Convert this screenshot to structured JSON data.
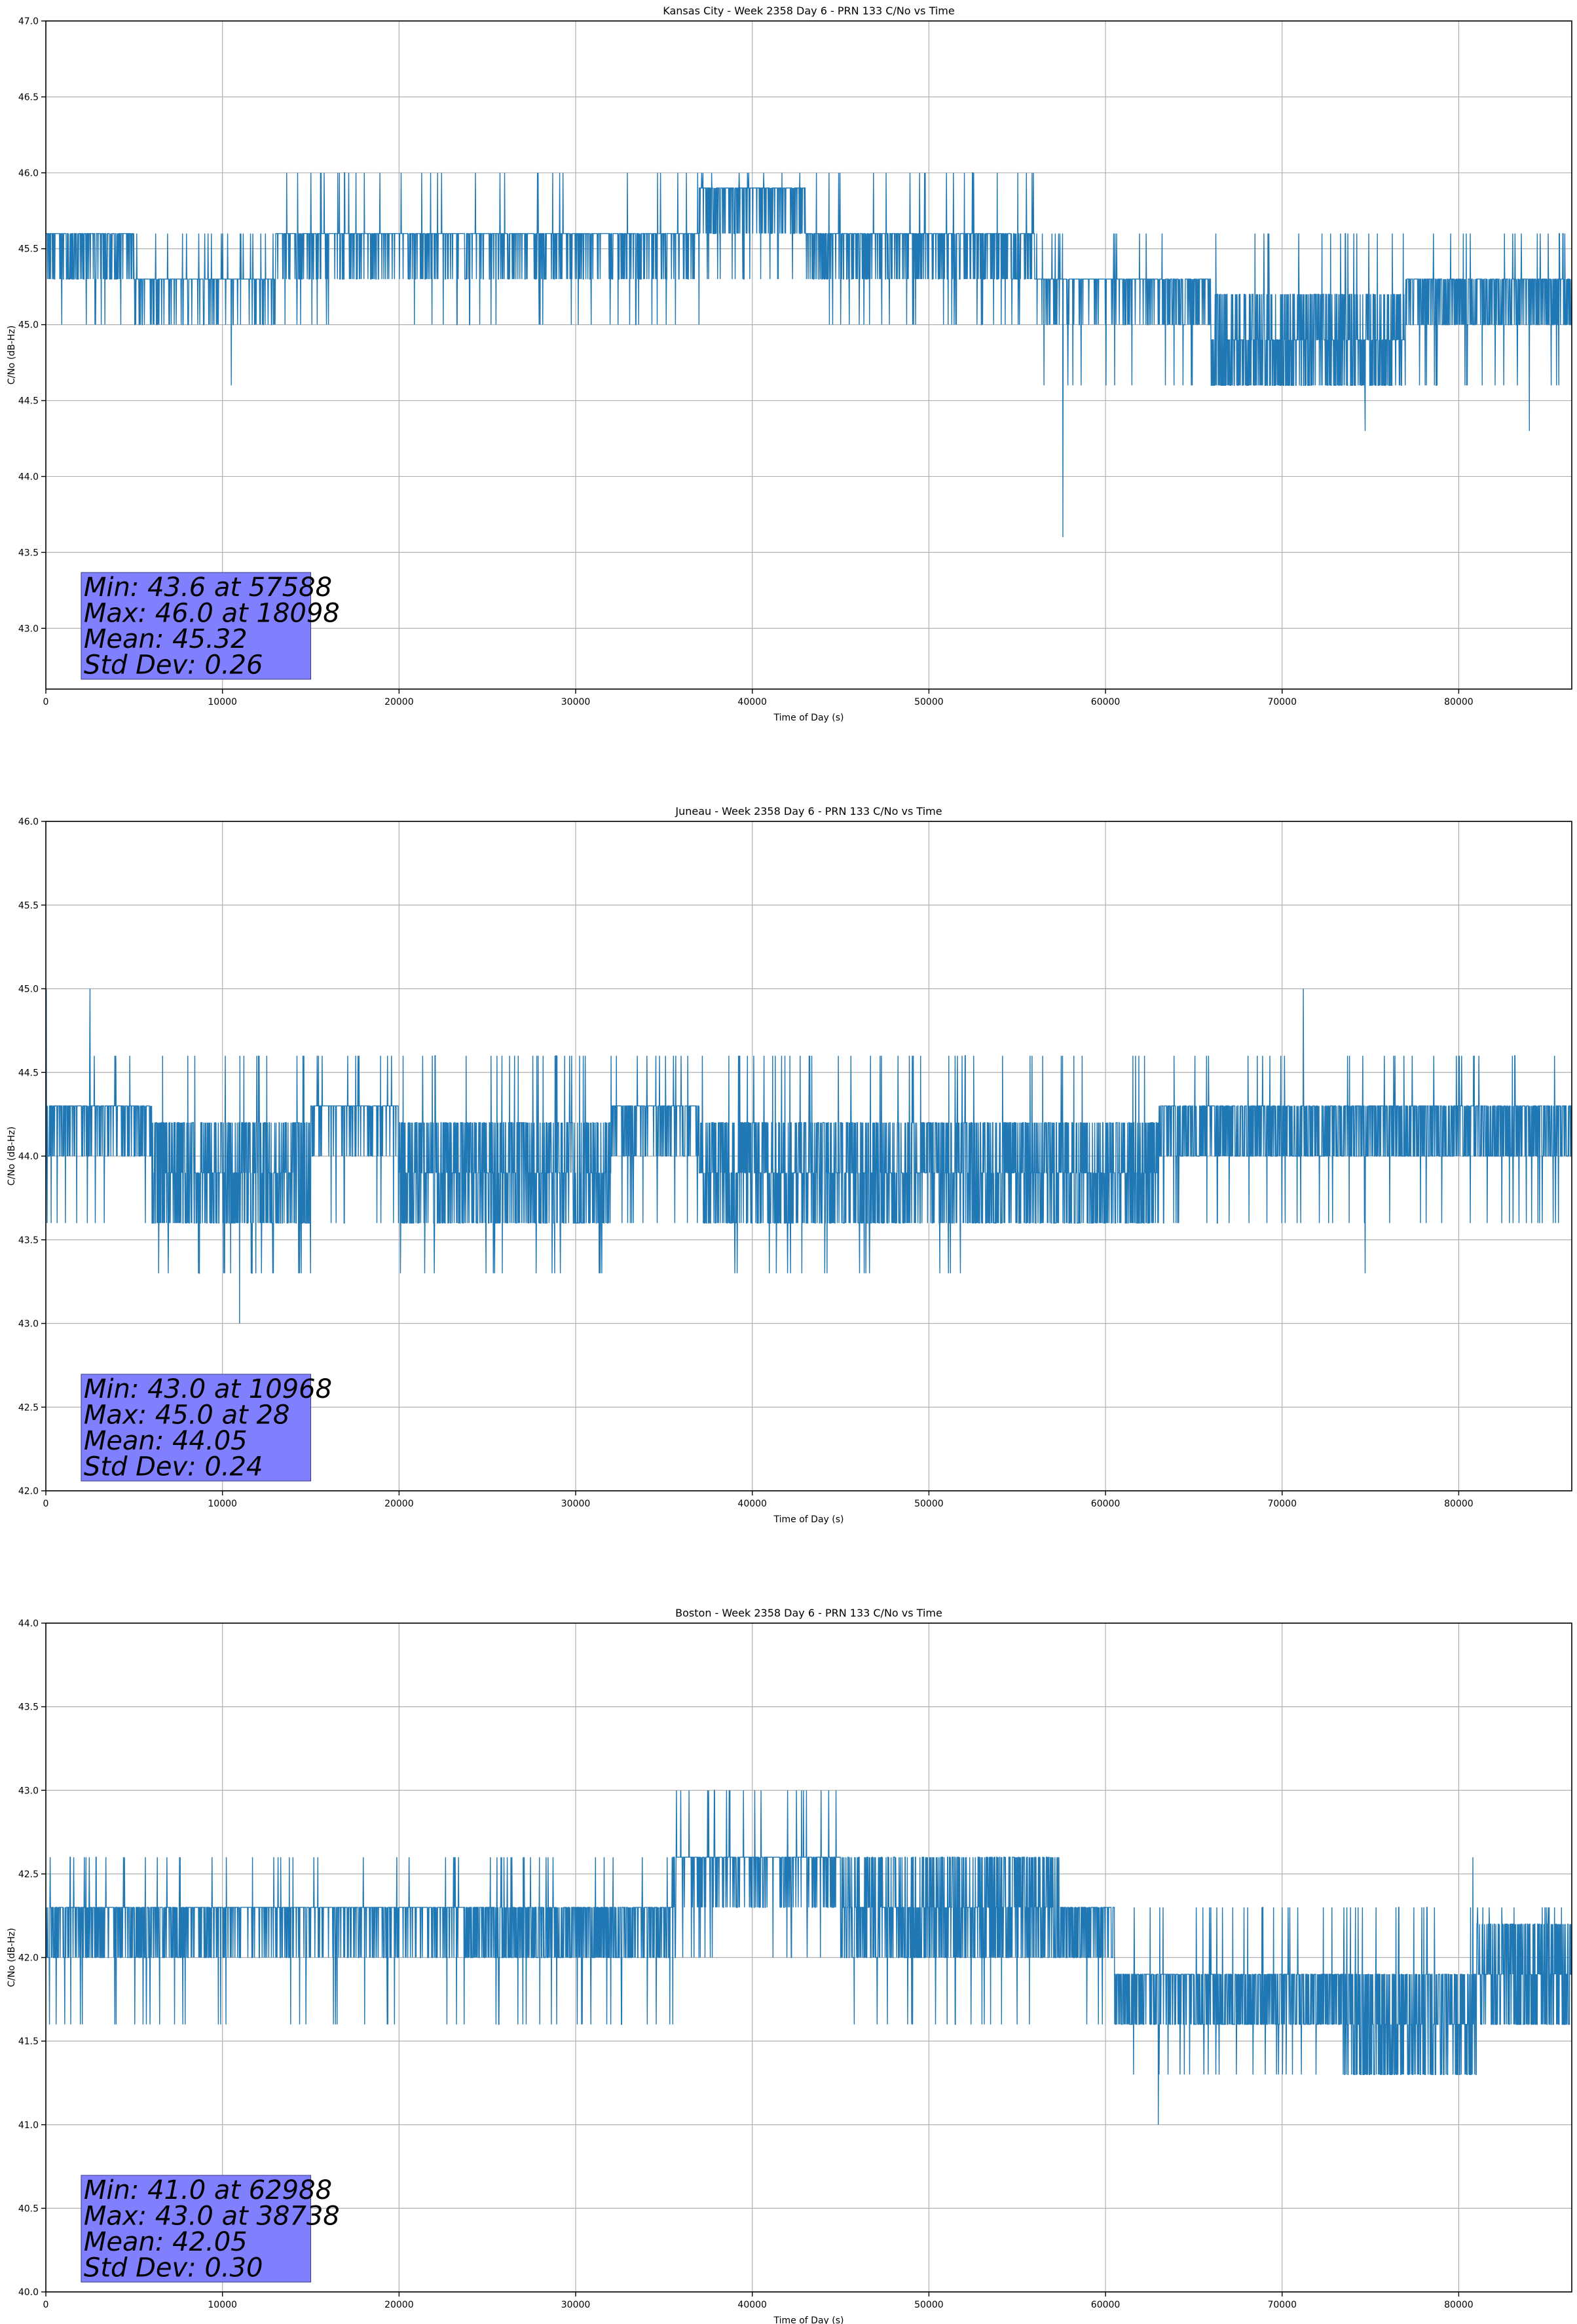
{
  "chart_data": [
    {
      "type": "line",
      "title": "Kansas City - Week 2358 Day 6 - PRN 133 C/No vs Time",
      "xlabel": "Time of Day (s)",
      "ylabel": "C/No (dB-Hz)",
      "xlim": [
        0,
        86400
      ],
      "ylim": [
        42.6,
        47.0
      ],
      "xticks": [
        0,
        10000,
        20000,
        30000,
        40000,
        50000,
        60000,
        70000,
        80000
      ],
      "yticks": [
        43.0,
        43.5,
        44.0,
        44.5,
        45.0,
        45.5,
        46.0,
        46.5,
        47.0
      ],
      "grid": true,
      "series": [
        {
          "name": "C/No",
          "color": "#1f77b4",
          "quantization_step": 0.3,
          "segments": [
            {
              "x_start": 0,
              "x_end": 5000,
              "band": [
                45.3,
                45.6
              ],
              "outlier_low": 45.0,
              "outlier_high": 45.6,
              "bias": 0.7
            },
            {
              "x_start": 5000,
              "x_end": 13000,
              "band": [
                45.0,
                45.3
              ],
              "outlier_low": 45.0,
              "outlier_high": 45.6,
              "bias": 0.85
            },
            {
              "x_start": 13000,
              "x_end": 37000,
              "band": [
                45.3,
                45.6
              ],
              "outlier_low": 45.0,
              "outlier_high": 46.0,
              "bias": 0.8
            },
            {
              "x_start": 37000,
              "x_end": 43000,
              "band": [
                45.6,
                46.0
              ],
              "outlier_low": 45.3,
              "outlier_high": 46.0,
              "bias": 0.7
            },
            {
              "x_start": 43000,
              "x_end": 56000,
              "band": [
                45.3,
                45.6
              ],
              "outlier_low": 45.0,
              "outlier_high": 46.0,
              "bias": 0.75
            },
            {
              "x_start": 56000,
              "x_end": 66000,
              "band": [
                45.0,
                45.3
              ],
              "outlier_low": 44.6,
              "outlier_high": 45.6,
              "bias": 0.8
            },
            {
              "x_start": 66000,
              "x_end": 77000,
              "band": [
                44.6,
                45.3
              ],
              "outlier_low": 44.6,
              "outlier_high": 45.6,
              "bias": 0.5
            },
            {
              "x_start": 77000,
              "x_end": 86400,
              "band": [
                45.0,
                45.3
              ],
              "outlier_low": 44.6,
              "outlier_high": 45.6,
              "bias": 0.6
            }
          ],
          "spikes": [
            [
              10500,
              44.6
            ],
            [
              57588,
              43.6
            ],
            [
              74700,
              44.3
            ],
            [
              84000,
              44.3
            ]
          ]
        }
      ],
      "stats": {
        "min_label": "Min: 43.6 at 57588",
        "max_label": "Max: 46.0 at 18098",
        "mean_label": "Mean: 45.32",
        "std_label": "Std Dev: 0.26",
        "box_color": "#8080ff"
      }
    },
    {
      "type": "line",
      "title": "Juneau - Week 2358 Day 6 - PRN 133 C/No vs Time",
      "xlabel": "Time of Day (s)",
      "ylabel": "C/No (dB-Hz)",
      "xlim": [
        0,
        86400
      ],
      "ylim": [
        42.0,
        46.0
      ],
      "xticks": [
        0,
        10000,
        20000,
        30000,
        40000,
        50000,
        60000,
        70000,
        80000
      ],
      "yticks": [
        42.0,
        42.5,
        43.0,
        43.5,
        44.0,
        44.5,
        45.0,
        45.5,
        46.0
      ],
      "grid": true,
      "series": [
        {
          "name": "C/No",
          "color": "#1f77b4",
          "quantization_step": 0.3,
          "segments": [
            {
              "x_start": 0,
              "x_end": 6000,
              "band": [
                44.0,
                44.3
              ],
              "outlier_low": 43.6,
              "outlier_high": 44.6,
              "bias": 0.7
            },
            {
              "x_start": 6000,
              "x_end": 15000,
              "band": [
                43.6,
                44.3
              ],
              "outlier_low": 43.3,
              "outlier_high": 44.6,
              "bias": 0.5
            },
            {
              "x_start": 15000,
              "x_end": 20000,
              "band": [
                44.0,
                44.3
              ],
              "outlier_low": 43.6,
              "outlier_high": 44.6,
              "bias": 0.8
            },
            {
              "x_start": 20000,
              "x_end": 32000,
              "band": [
                43.6,
                44.3
              ],
              "outlier_low": 43.3,
              "outlier_high": 44.6,
              "bias": 0.5
            },
            {
              "x_start": 32000,
              "x_end": 37000,
              "band": [
                44.0,
                44.3
              ],
              "outlier_low": 43.6,
              "outlier_high": 44.6,
              "bias": 0.75
            },
            {
              "x_start": 37000,
              "x_end": 52000,
              "band": [
                43.6,
                44.3
              ],
              "outlier_low": 43.3,
              "outlier_high": 44.6,
              "bias": 0.55
            },
            {
              "x_start": 52000,
              "x_end": 63000,
              "band": [
                43.6,
                44.3
              ],
              "outlier_low": 43.6,
              "outlier_high": 44.6,
              "bias": 0.55
            },
            {
              "x_start": 63000,
              "x_end": 86400,
              "band": [
                44.0,
                44.3
              ],
              "outlier_low": 43.6,
              "outlier_high": 44.6,
              "bias": 0.55
            }
          ],
          "spikes": [
            [
              28,
              45.0
            ],
            [
              2500,
              45.0
            ],
            [
              10968,
              43.0
            ],
            [
              71200,
              45.0
            ],
            [
              74700,
              43.3
            ]
          ]
        }
      ],
      "stats": {
        "min_label": "Min: 43.0 at 10968",
        "max_label": "Max: 45.0 at 28",
        "mean_label": "Mean: 44.05",
        "std_label": "Std Dev: 0.24",
        "box_color": "#8080ff"
      }
    },
    {
      "type": "line",
      "title": "Boston - Week 2358 Day 6 - PRN 133 C/No vs Time",
      "xlabel": "Time of Day (s)",
      "ylabel": "C/No (dB-Hz)",
      "xlim": [
        0,
        86400
      ],
      "ylim": [
        40.0,
        44.0
      ],
      "xticks": [
        0,
        10000,
        20000,
        30000,
        40000,
        50000,
        60000,
        70000,
        80000
      ],
      "yticks": [
        40.0,
        40.5,
        41.0,
        41.5,
        42.0,
        42.5,
        43.0,
        43.5,
        44.0
      ],
      "grid": true,
      "series": [
        {
          "name": "C/No",
          "color": "#1f77b4",
          "quantization_step": 0.3,
          "segments": [
            {
              "x_start": 0,
              "x_end": 7500,
              "band": [
                42.0,
                42.3
              ],
              "outlier_low": 41.6,
              "outlier_high": 42.6,
              "bias": 0.65
            },
            {
              "x_start": 7500,
              "x_end": 23500,
              "band": [
                42.0,
                42.3
              ],
              "outlier_low": 41.6,
              "outlier_high": 42.6,
              "bias": 0.8
            },
            {
              "x_start": 23500,
              "x_end": 35500,
              "band": [
                42.0,
                42.3
              ],
              "outlier_low": 41.6,
              "outlier_high": 42.6,
              "bias": 0.6
            },
            {
              "x_start": 35500,
              "x_end": 45000,
              "band": [
                42.3,
                42.6
              ],
              "outlier_low": 42.0,
              "outlier_high": 43.0,
              "bias": 0.8
            },
            {
              "x_start": 45000,
              "x_end": 57500,
              "band": [
                42.0,
                42.6
              ],
              "outlier_low": 41.6,
              "outlier_high": 42.6,
              "bias": 0.6
            },
            {
              "x_start": 57500,
              "x_end": 60500,
              "band": [
                42.0,
                42.3
              ],
              "outlier_low": 41.6,
              "outlier_high": 42.3,
              "bias": 0.6
            },
            {
              "x_start": 60500,
              "x_end": 73500,
              "band": [
                41.6,
                42.0
              ],
              "outlier_low": 41.3,
              "outlier_high": 42.3,
              "bias": 0.6
            },
            {
              "x_start": 73500,
              "x_end": 81000,
              "band": [
                41.3,
                42.0
              ],
              "outlier_low": 41.3,
              "outlier_high": 42.3,
              "bias": 0.5
            },
            {
              "x_start": 81000,
              "x_end": 86400,
              "band": [
                41.6,
                42.3
              ],
              "outlier_low": 41.6,
              "outlier_high": 42.3,
              "bias": 0.5
            }
          ],
          "spikes": [
            [
              38738,
              43.0
            ],
            [
              39500,
              43.0
            ],
            [
              42000,
              43.0
            ],
            [
              42500,
              43.0
            ],
            [
              62988,
              41.0
            ],
            [
              80800,
              42.6
            ]
          ]
        }
      ],
      "stats": {
        "min_label": "Min: 41.0 at 62988",
        "max_label": "Max: 43.0 at 38738",
        "mean_label": "Mean: 42.05",
        "std_label": "Std Dev: 0.30",
        "box_color": "#8080ff"
      }
    }
  ]
}
